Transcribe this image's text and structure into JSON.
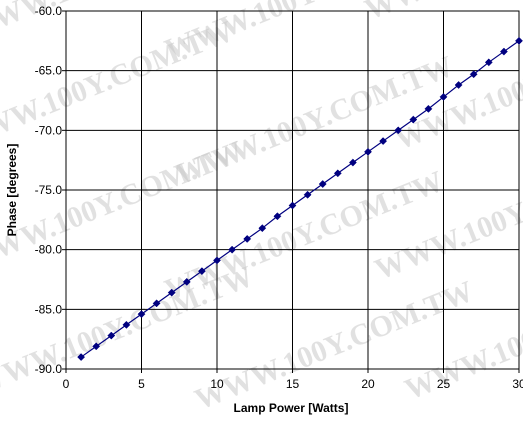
{
  "watermark": "WWW.100Y.COM.TW",
  "colors": {
    "series": "#000080",
    "grid": "#000000",
    "background": "#ffffff",
    "watermark": "#c9c9c9"
  },
  "chart_data": {
    "type": "line",
    "title": "",
    "xlabel": "Lamp Power [Watts]",
    "ylabel": "Phase [degrees]",
    "xlim": [
      0,
      30
    ],
    "ylim": [
      -90.0,
      -60.0
    ],
    "xticks": [
      0,
      5,
      10,
      15,
      20,
      25,
      30
    ],
    "yticks": [
      -90.0,
      -85.0,
      -80.0,
      -75.0,
      -70.0,
      -65.0,
      -60.0
    ],
    "xtick_labels": [
      "0",
      "5",
      "10",
      "15",
      "20",
      "25",
      "30"
    ],
    "ytick_labels": [
      "-90.0",
      "-85.0",
      "-80.0",
      "-75.0",
      "-70.0",
      "-65.0",
      "-60.0"
    ],
    "grid": true,
    "legend": "none",
    "marker": "diamond",
    "series": [
      {
        "x": [
          1,
          2,
          3,
          4,
          5,
          6,
          7,
          8,
          9,
          10,
          11,
          12,
          13,
          14,
          15,
          16,
          17,
          18,
          19,
          20,
          21,
          22,
          23,
          24,
          25,
          26,
          27,
          28,
          29,
          30
        ],
        "values": [
          -89.0,
          -88.1,
          -87.2,
          -86.3,
          -85.4,
          -84.5,
          -83.6,
          -82.7,
          -81.8,
          -80.9,
          -80.0,
          -79.1,
          -78.2,
          -77.2,
          -76.3,
          -75.4,
          -74.5,
          -73.6,
          -72.7,
          -71.8,
          -70.9,
          -70.0,
          -69.1,
          -68.2,
          -67.2,
          -66.2,
          -65.3,
          -64.3,
          -63.4,
          -62.5
        ]
      }
    ]
  }
}
